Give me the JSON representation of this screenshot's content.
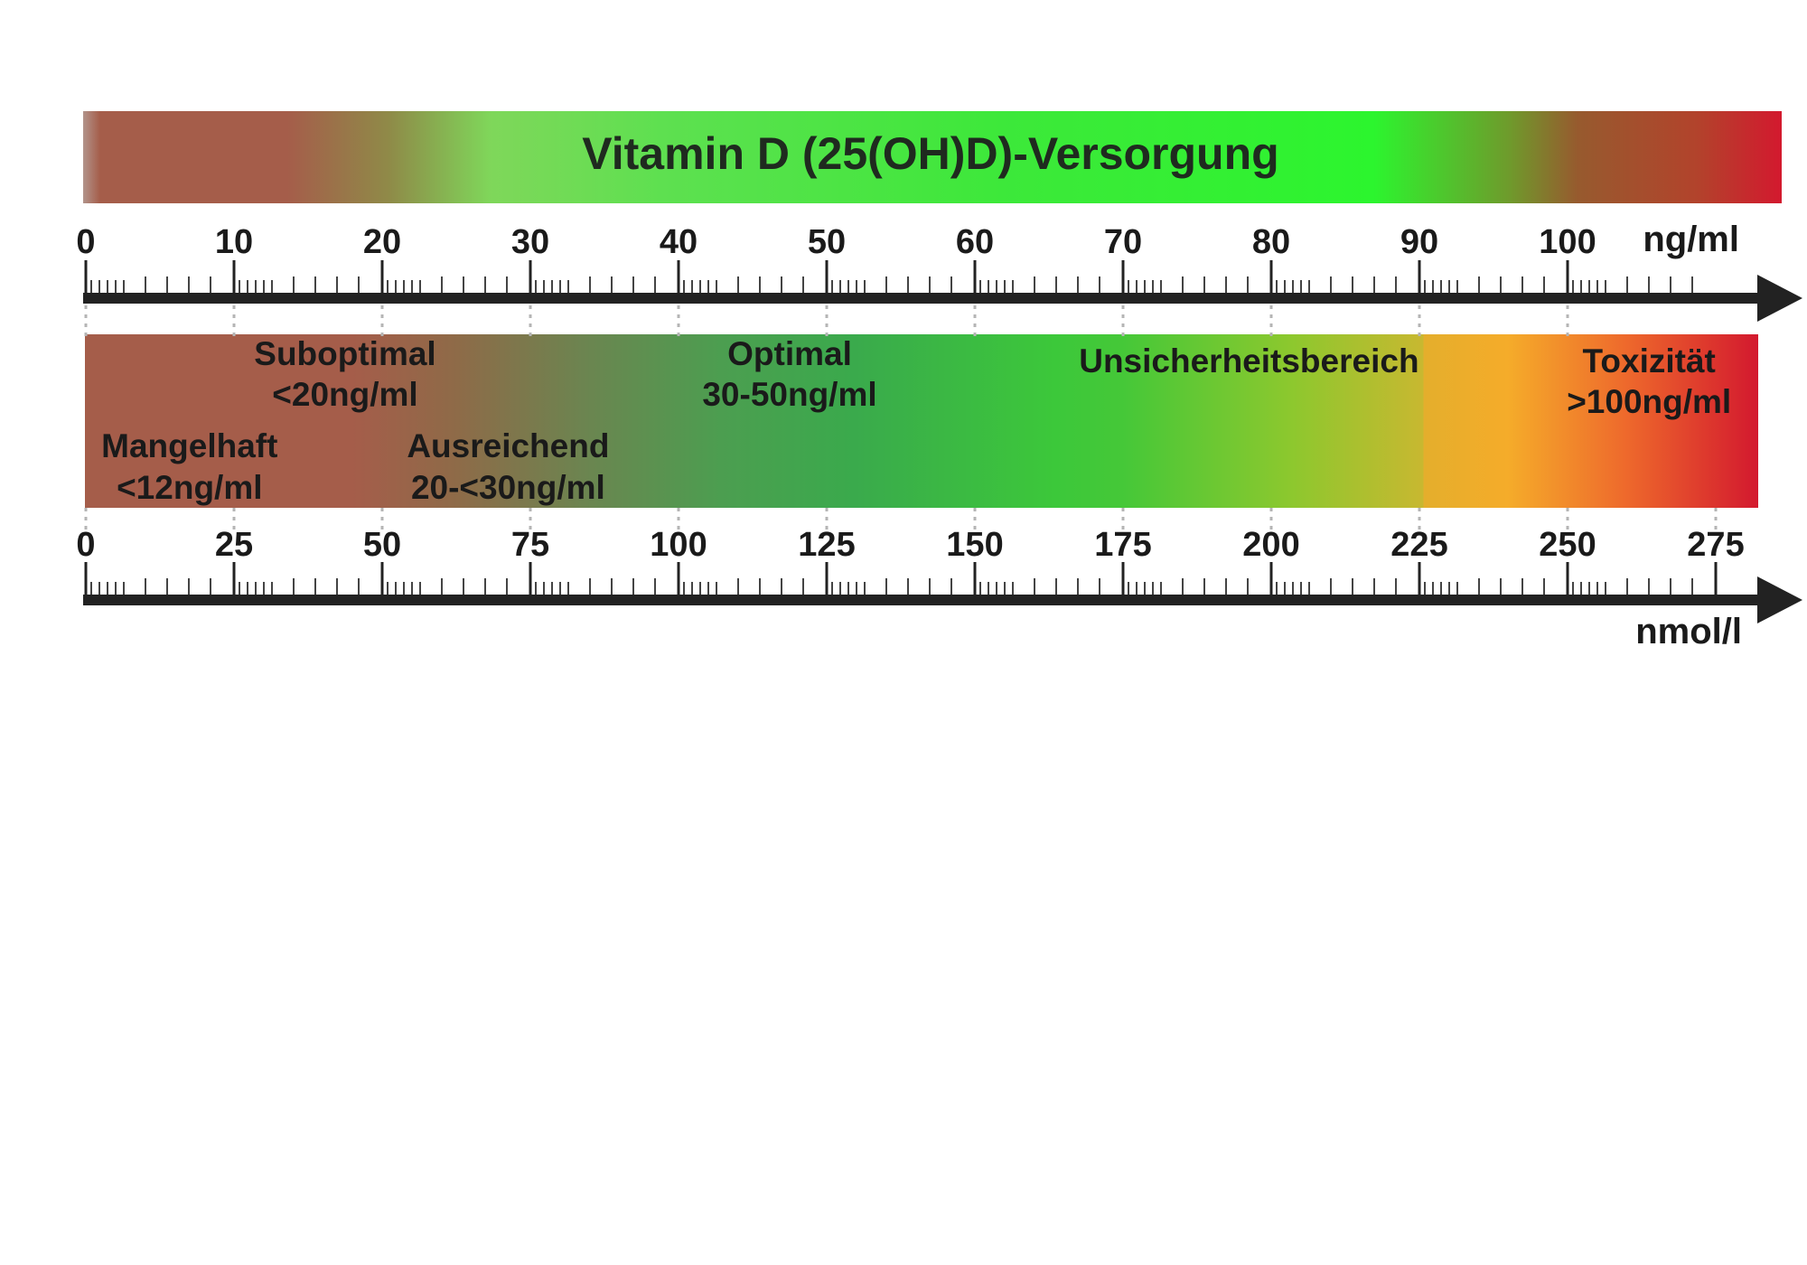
{
  "title": "Vitamin D (25(OH)D)-Versorgung",
  "top_axis": {
    "unit": "ng/ml",
    "ticks": [
      "0",
      "10",
      "20",
      "30",
      "40",
      "50",
      "60",
      "70",
      "80",
      "90",
      "100"
    ],
    "max": 110
  },
  "bottom_axis": {
    "unit": "nmol/l",
    "ticks": [
      "0",
      "25",
      "50",
      "75",
      "100",
      "125",
      "150",
      "175",
      "200",
      "225",
      "250",
      "275"
    ],
    "max": 282.5
  },
  "colors": {
    "deficient": "#a55d4a",
    "optimal": "#2ee832",
    "toxic": "#d3192e",
    "warning": "#f5ac2a",
    "axis": "#222222"
  },
  "zones": [
    {
      "id": "mangelhaft",
      "name": "Mangelhaft",
      "range": "<12ng/ml",
      "center_ngml": 7
    },
    {
      "id": "suboptimal",
      "name": "Suboptimal",
      "range": "<20ng/ml",
      "center_ngml": 17.5
    },
    {
      "id": "ausreichend",
      "name": "Ausreichend",
      "range": "20-<30ng/ml",
      "center_ngml": 28.5
    },
    {
      "id": "optimal",
      "name": "Optimal",
      "range": "30-50ng/ml",
      "center_ngml": 47.5
    },
    {
      "id": "unsicherheitsbereich",
      "name": "Unsicherheitsbereich",
      "range": "",
      "center_ngml": 78.5
    },
    {
      "id": "toxizitaet",
      "name": "Toxizität",
      "range": ">100ng/ml",
      "center_ngml": 105.5
    }
  ]
}
